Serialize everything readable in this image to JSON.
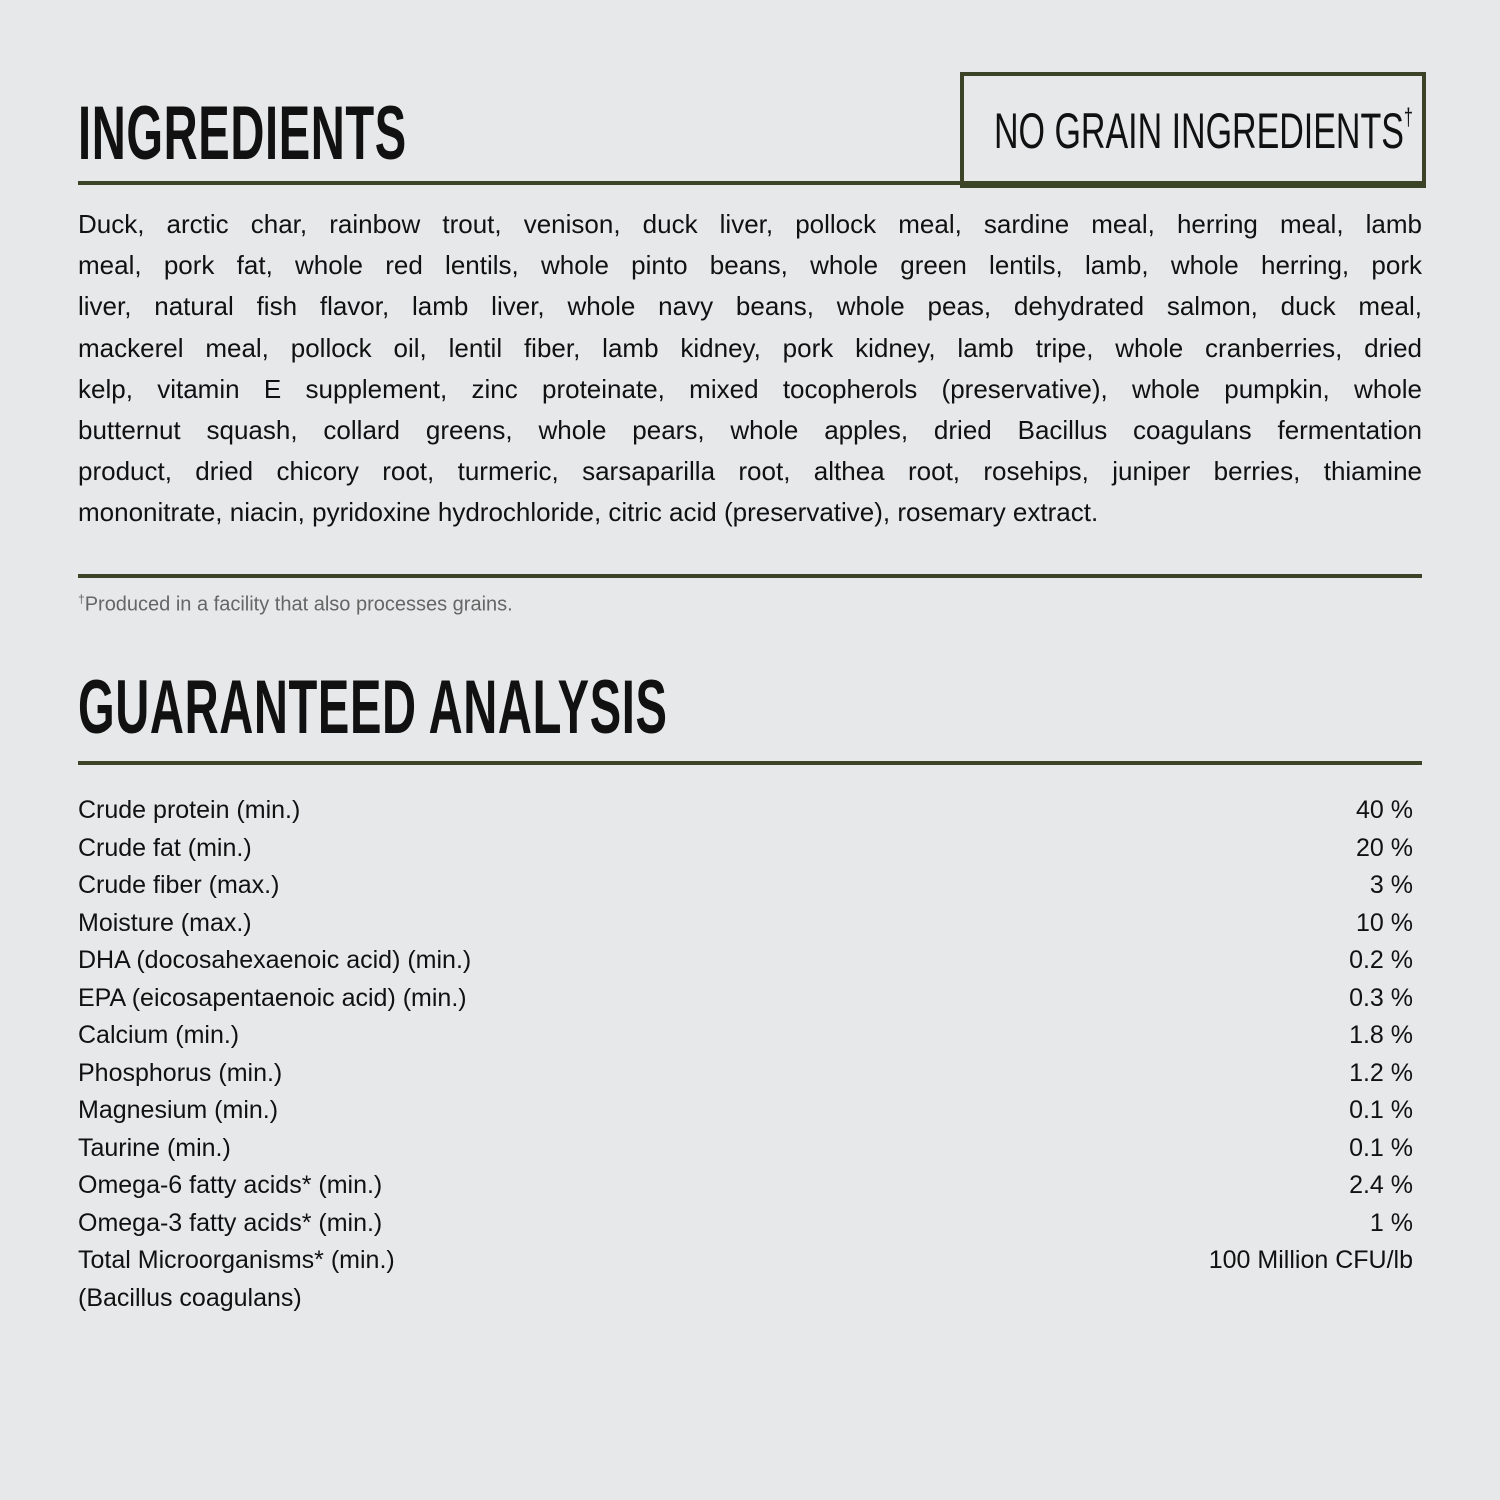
{
  "ingredients": {
    "title": "INGREDIENTS",
    "badge": "NO GRAIN INGREDIENTS",
    "badge_mark": "†",
    "lines": [
      "Duck, arctic char, rainbow trout, venison, duck liver, pollock meal, sardine meal, herring meal, lamb",
      "meal, pork fat, whole red lentils, whole pinto beans, whole green lentils, lamb, whole herring, pork",
      "liver, natural fish flavor, lamb liver, whole navy beans, whole peas, dehydrated salmon, duck meal,",
      "mackerel meal, pollock oil, lentil fiber, lamb kidney, pork kidney, lamb tripe, whole cranberries, dried",
      "kelp, vitamin E supplement, zinc proteinate, mixed tocopherols (preservative), whole pumpkin, whole",
      "butternut squash, collard greens, whole pears, whole apples, dried Bacillus coagulans fermentation",
      "product, dried chicory root, turmeric, sarsaparilla root, althea root, rosehips, juniper berries, thiamine",
      "mononitrate, niacin, pyridoxine hydrochloride, citric acid (preservative), rosemary extract."
    ],
    "footnote_mark": "†",
    "footnote": "Produced in a facility that also processes grains."
  },
  "analysis": {
    "title": "GUARANTEED ANALYSIS",
    "rows": [
      {
        "label": "Crude protein (min.)",
        "value": "40 %"
      },
      {
        "label": "Crude fat (min.)",
        "value": "20 %"
      },
      {
        "label": "Crude fiber (max.)",
        "value": "3 %"
      },
      {
        "label": "Moisture (max.)",
        "value": "10 %"
      },
      {
        "label": "DHA (docosahexaenoic acid) (min.)",
        "value": "0.2 %"
      },
      {
        "label": "EPA (eicosapentaenoic acid) (min.)",
        "value": "0.3 %"
      },
      {
        "label": "Calcium (min.)",
        "value": "1.8 %"
      },
      {
        "label": "Phosphorus (min.)",
        "value": "1.2 %"
      },
      {
        "label": "Magnesium (min.)",
        "value": "0.1 %"
      },
      {
        "label": "Taurine (min.)",
        "value": "0.1 %"
      },
      {
        "label": "Omega-6 fatty acids* (min.)",
        "value": "2.4 %"
      },
      {
        "label": "Omega-3 fatty acids* (min.)",
        "value": "1 %"
      },
      {
        "label": "Total Microorganisms* (min.)",
        "value": "100 Million CFU/lb"
      },
      {
        "label": "(Bacillus coagulans)",
        "value": ""
      }
    ]
  },
  "colors": {
    "rule": "#3c4428",
    "background": "#e7e8e9"
  }
}
